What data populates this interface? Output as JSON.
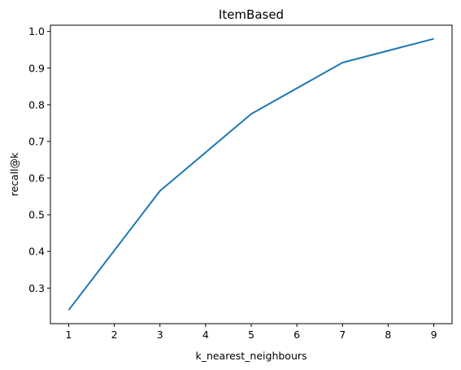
{
  "chart_data": {
    "type": "line",
    "title": "ItemBased",
    "xlabel": "k_nearest_neighbours",
    "ylabel": "recall@k",
    "x": [
      1,
      3,
      5,
      7,
      9
    ],
    "series": [
      {
        "values": [
          0.24,
          0.565,
          0.775,
          0.915,
          0.98
        ]
      }
    ],
    "xticks": [
      1,
      2,
      3,
      4,
      5,
      6,
      7,
      8,
      9
    ],
    "yticks": [
      0.3,
      0.4,
      0.5,
      0.6,
      0.7,
      0.8,
      0.9,
      1.0
    ],
    "ytick_labels": [
      "0.3",
      "0.4",
      "0.5",
      "0.6",
      "0.7",
      "0.8",
      "0.9",
      "1.0"
    ],
    "xlim": [
      0.6,
      9.4
    ],
    "ylim": [
      0.203,
      1.017
    ],
    "grid": false,
    "line_color": "#1f77b4"
  }
}
